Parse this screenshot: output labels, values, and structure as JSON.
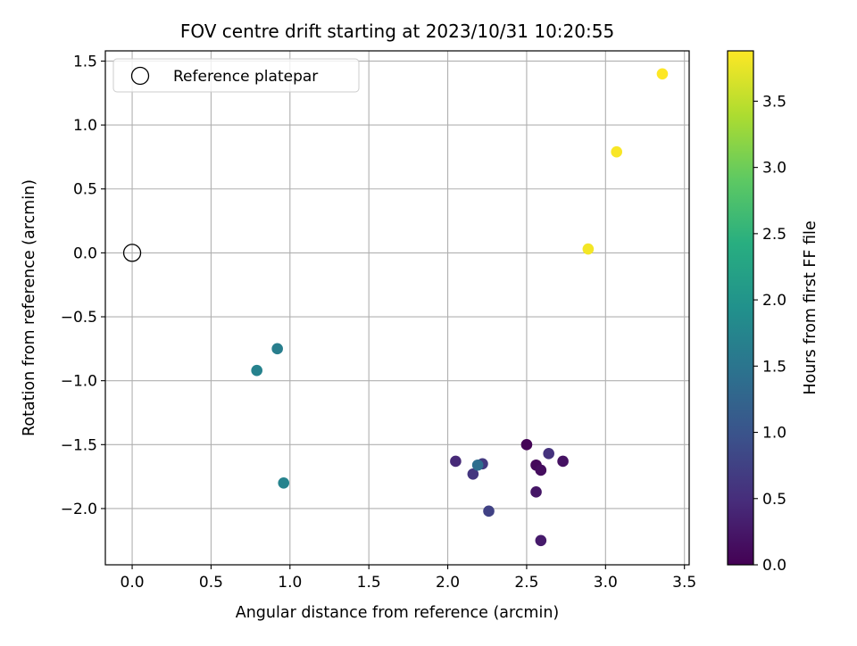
{
  "chart_data": {
    "type": "scatter",
    "title": "FOV centre drift starting at 2023/10/31 10:20:55",
    "xlabel": "Angular distance from reference (arcmin)",
    "ylabel": "Rotation from reference (arcmin)",
    "xlim": [
      -0.17,
      3.53
    ],
    "ylim": [
      -2.44,
      1.58
    ],
    "x_ticks": [
      0.0,
      0.5,
      1.0,
      1.5,
      2.0,
      2.5,
      3.0,
      3.5
    ],
    "x_tick_labels": [
      "0.0",
      "0.5",
      "1.0",
      "1.5",
      "2.0",
      "2.5",
      "3.0",
      "3.5"
    ],
    "y_ticks": [
      1.5,
      1.0,
      0.5,
      0.0,
      -0.5,
      -1.0,
      -1.5,
      -2.0
    ],
    "y_tick_labels": [
      "1.5",
      "1.0",
      "0.5",
      "0.0",
      "−0.5",
      "−1.0",
      "−1.5",
      "−2.0"
    ],
    "grid": true,
    "colormap": "viridis",
    "colorbar": {
      "label": "Hours from first FF file",
      "range": [
        0.0,
        3.88
      ],
      "ticks": [
        0.0,
        0.5,
        1.0,
        1.5,
        2.0,
        2.5,
        3.0,
        3.5
      ],
      "tick_labels": [
        "0.0",
        "0.5",
        "1.0",
        "1.5",
        "2.0",
        "2.5",
        "3.0",
        "3.5"
      ]
    },
    "legend": {
      "placement": "top-left",
      "entries": [
        "Reference platepar"
      ]
    },
    "reference_point": {
      "x": 0.0,
      "y": 0.0
    },
    "points": [
      {
        "x": 2.5,
        "y": -1.5,
        "c": 0.03
      },
      {
        "x": 2.56,
        "y": -1.66,
        "c": 0.08
      },
      {
        "x": 2.59,
        "y": -1.7,
        "c": 0.13
      },
      {
        "x": 2.73,
        "y": -1.63,
        "c": 0.18
      },
      {
        "x": 2.56,
        "y": -1.87,
        "c": 0.23
      },
      {
        "x": 2.59,
        "y": -2.25,
        "c": 0.28
      },
      {
        "x": 2.05,
        "y": -1.63,
        "c": 0.45
      },
      {
        "x": 2.64,
        "y": -1.57,
        "c": 0.55
      },
      {
        "x": 2.16,
        "y": -1.73,
        "c": 0.6
      },
      {
        "x": 2.22,
        "y": -1.65,
        "c": 0.65
      },
      {
        "x": 2.26,
        "y": -2.02,
        "c": 0.75
      },
      {
        "x": 2.19,
        "y": -1.66,
        "c": 1.4
      },
      {
        "x": 0.92,
        "y": -0.75,
        "c": 1.65
      },
      {
        "x": 0.79,
        "y": -0.92,
        "c": 1.7
      },
      {
        "x": 0.96,
        "y": -1.8,
        "c": 1.72
      },
      {
        "x": 2.89,
        "y": 0.03,
        "c": 3.82
      },
      {
        "x": 3.07,
        "y": 0.79,
        "c": 3.85
      },
      {
        "x": 3.36,
        "y": 1.4,
        "c": 3.88
      }
    ]
  }
}
